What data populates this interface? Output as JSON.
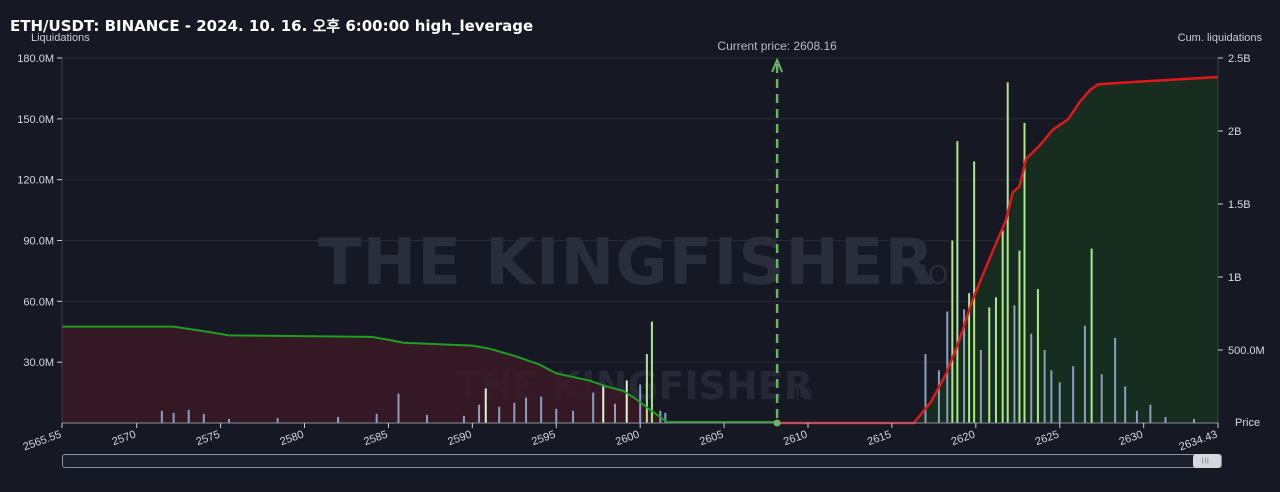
{
  "header": {
    "title": "ETH/USDT: BINANCE - 2024. 10. 16. 오후 6:00:00 high_leverage",
    "left_axis_title": "Liquidations",
    "right_axis_title": "Cum. liquidations"
  },
  "watermark": {
    "text": "THE KINGFISHER",
    "suffix": ".IO"
  },
  "chart_data": {
    "type": "bar",
    "title": "ETH/USDT: BINANCE - 2024. 10. 16. 오후 6:00:00 high_leverage",
    "xlabel": "Price",
    "ylabel": "Liquidations",
    "y2label": "Cum. liquidations",
    "xlim": [
      2565.55,
      2634.43
    ],
    "ylim": [
      0,
      180000000
    ],
    "y2lim": [
      0,
      2500000000
    ],
    "x_ticks": [
      "2565.55",
      "2570",
      "2575",
      "2580",
      "2585",
      "2590",
      "2595",
      "2600",
      "2605",
      "2610",
      "2615",
      "2620",
      "2625",
      "2630",
      "2634.43"
    ],
    "y_ticks": [
      "30.0M",
      "60.0M",
      "90.0M",
      "120.0M",
      "150.0M",
      "180.0M"
    ],
    "y_tick_values": [
      30000000,
      60000000,
      90000000,
      120000000,
      150000000,
      180000000
    ],
    "y2_ticks": [
      "500.0M",
      "1B",
      "1.5B",
      "2B",
      "2.5B"
    ],
    "y2_tick_values": [
      500000000,
      1000000000,
      1500000000,
      2000000000,
      2500000000
    ],
    "current_price": 2608.16,
    "current_price_label": "Current price: 2608.16",
    "grid": true,
    "bars": [
      {
        "x": 2571.5,
        "y": 6000000,
        "side": "short"
      },
      {
        "x": 2572.2,
        "y": 5000000,
        "side": "short"
      },
      {
        "x": 2573.1,
        "y": 6500000,
        "side": "short"
      },
      {
        "x": 2574.0,
        "y": 4500000,
        "side": "short"
      },
      {
        "x": 2575.5,
        "y": 2000000,
        "side": "short"
      },
      {
        "x": 2578.4,
        "y": 2500000,
        "side": "short"
      },
      {
        "x": 2582.0,
        "y": 3000000,
        "side": "short"
      },
      {
        "x": 2584.3,
        "y": 4500000,
        "side": "short"
      },
      {
        "x": 2585.6,
        "y": 14500000,
        "side": "short"
      },
      {
        "x": 2587.3,
        "y": 4000000,
        "side": "short"
      },
      {
        "x": 2589.5,
        "y": 3500000,
        "side": "short"
      },
      {
        "x": 2590.4,
        "y": 9000000,
        "side": "short"
      },
      {
        "x": 2590.8,
        "y": 17000000,
        "side": "long"
      },
      {
        "x": 2591.6,
        "y": 8000000,
        "side": "short"
      },
      {
        "x": 2592.5,
        "y": 10000000,
        "side": "short"
      },
      {
        "x": 2593.2,
        "y": 12500000,
        "side": "short"
      },
      {
        "x": 2594.1,
        "y": 13000000,
        "side": "short"
      },
      {
        "x": 2595.0,
        "y": 7000000,
        "side": "short"
      },
      {
        "x": 2596.0,
        "y": 6000000,
        "side": "short"
      },
      {
        "x": 2597.2,
        "y": 15000000,
        "side": "short"
      },
      {
        "x": 2597.8,
        "y": 18000000,
        "side": "long"
      },
      {
        "x": 2598.5,
        "y": 9500000,
        "side": "short"
      },
      {
        "x": 2599.2,
        "y": 21000000,
        "side": "long"
      },
      {
        "x": 2600.0,
        "y": 19000000,
        "side": "short"
      },
      {
        "x": 2600.4,
        "y": 34000000,
        "side": "long"
      },
      {
        "x": 2600.7,
        "y": 50000000,
        "side": "long"
      },
      {
        "x": 2601.2,
        "y": 6000000,
        "side": "short"
      },
      {
        "x": 2601.5,
        "y": 5000000,
        "side": "short"
      },
      {
        "x": 2617.0,
        "y": 34000000,
        "side": "short"
      },
      {
        "x": 2617.8,
        "y": 26000000,
        "side": "short"
      },
      {
        "x": 2618.3,
        "y": 55000000,
        "side": "short"
      },
      {
        "x": 2618.6,
        "y": 90000000,
        "side": "long"
      },
      {
        "x": 2618.9,
        "y": 139000000,
        "side": "long"
      },
      {
        "x": 2619.3,
        "y": 56000000,
        "side": "short"
      },
      {
        "x": 2619.6,
        "y": 64000000,
        "side": "long"
      },
      {
        "x": 2619.9,
        "y": 129000000,
        "side": "long"
      },
      {
        "x": 2620.3,
        "y": 36000000,
        "side": "short"
      },
      {
        "x": 2620.8,
        "y": 57000000,
        "side": "long"
      },
      {
        "x": 2621.2,
        "y": 62000000,
        "side": "long"
      },
      {
        "x": 2621.6,
        "y": 95000000,
        "side": "long"
      },
      {
        "x": 2621.9,
        "y": 168000000,
        "side": "long"
      },
      {
        "x": 2622.3,
        "y": 58000000,
        "side": "short"
      },
      {
        "x": 2622.6,
        "y": 85000000,
        "side": "long"
      },
      {
        "x": 2622.9,
        "y": 148000000,
        "side": "long"
      },
      {
        "x": 2623.3,
        "y": 44000000,
        "side": "short"
      },
      {
        "x": 2623.7,
        "y": 66000000,
        "side": "long"
      },
      {
        "x": 2624.1,
        "y": 36000000,
        "side": "short"
      },
      {
        "x": 2624.5,
        "y": 26000000,
        "side": "short"
      },
      {
        "x": 2625.0,
        "y": 20000000,
        "side": "short"
      },
      {
        "x": 2625.8,
        "y": 28000000,
        "side": "short"
      },
      {
        "x": 2626.5,
        "y": 48000000,
        "side": "short"
      },
      {
        "x": 2626.9,
        "y": 86000000,
        "side": "long"
      },
      {
        "x": 2627.5,
        "y": 24000000,
        "side": "short"
      },
      {
        "x": 2628.3,
        "y": 42000000,
        "side": "short"
      },
      {
        "x": 2628.9,
        "y": 18000000,
        "side": "short"
      },
      {
        "x": 2629.6,
        "y": 6000000,
        "side": "short"
      },
      {
        "x": 2630.4,
        "y": 9000000,
        "side": "short"
      },
      {
        "x": 2631.3,
        "y": 3000000,
        "side": "short"
      },
      {
        "x": 2633.0,
        "y": 2000000,
        "side": "short"
      }
    ],
    "cumulative_short": {
      "x": [
        2565.55,
        2572.2,
        2574.5,
        2575.5,
        2584.0,
        2585.0,
        2585.9,
        2590.0,
        2591.0,
        2592.5,
        2594.0,
        2595.0,
        2597.0,
        2598.0,
        2599.0,
        2599.8,
        2600.6,
        2601.2,
        2601.7
      ],
      "y": [
        660000000,
        660000000,
        620000000,
        600000000,
        590000000,
        570000000,
        550000000,
        530000000,
        510000000,
        460000000,
        400000000,
        340000000,
        290000000,
        250000000,
        220000000,
        160000000,
        90000000,
        40000000,
        0
      ]
    },
    "cumulative_long": {
      "x": [
        2608.16,
        2616.3,
        2617.3,
        2618.2,
        2618.8,
        2619.2,
        2619.8,
        2620.4,
        2621.2,
        2621.8,
        2622.2,
        2622.6,
        2623.0,
        2623.8,
        2624.6,
        2625.5,
        2626.2,
        2626.8,
        2627.3,
        2630.0,
        2634.43
      ],
      "y": [
        0,
        0,
        140000000,
        330000000,
        500000000,
        630000000,
        840000000,
        1010000000,
        1230000000,
        1390000000,
        1580000000,
        1620000000,
        1810000000,
        1900000000,
        2010000000,
        2080000000,
        2200000000,
        2280000000,
        2320000000,
        2340000000,
        2370000000
      ]
    },
    "colors": {
      "background": "#161824",
      "short_fill": "#3a1a26",
      "long_fill": "#16301f",
      "short_line": "#1e9e22",
      "long_line": "#e0181b",
      "bar_light": "#dff5d2",
      "bar_dim": "#8aa0bd",
      "bar_long_highlight": "#aee88d",
      "current_price_line": "#6fb06a",
      "grid": "#262a38",
      "axis": "#c9ccd6",
      "text": "#d7d9e0"
    }
  }
}
